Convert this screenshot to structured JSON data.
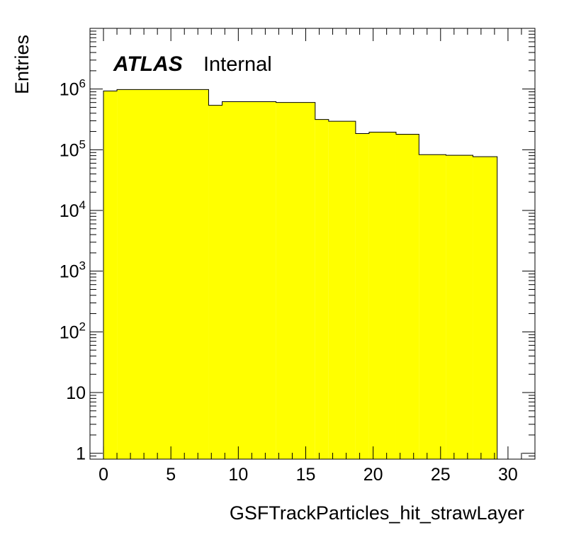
{
  "chart_data": {
    "type": "histogram",
    "title": "",
    "xlabel": "GSFTrackParticles_hit_strawLayer",
    "ylabel": "Entries",
    "xlim": [
      -1,
      32
    ],
    "ylim": [
      0.8,
      10000000
    ],
    "log_y": true,
    "fill_color": "#ffff00",
    "line_color": "#000000",
    "x_ticks": [
      0,
      5,
      10,
      15,
      20,
      25,
      30
    ],
    "y_ticks": [
      {
        "value": 1,
        "base": "1",
        "exp": ""
      },
      {
        "value": 10,
        "base": "10",
        "exp": ""
      },
      {
        "value": 100,
        "base": "10",
        "exp": "2"
      },
      {
        "value": 1000,
        "base": "10",
        "exp": "3"
      },
      {
        "value": 10000,
        "base": "10",
        "exp": "4"
      },
      {
        "value": 100000,
        "base": "10",
        "exp": "5"
      },
      {
        "value": 1000000,
        "base": "10",
        "exp": "6"
      }
    ],
    "bins": [
      {
        "low": 0,
        "high": 1,
        "value": 930000
      },
      {
        "low": 1,
        "high": 7.8,
        "value": 980000
      },
      {
        "low": 7.8,
        "high": 8.8,
        "value": 540000
      },
      {
        "low": 8.8,
        "high": 12.8,
        "value": 620000
      },
      {
        "low": 12.8,
        "high": 15.7,
        "value": 600000
      },
      {
        "low": 15.7,
        "high": 16.7,
        "value": 315000
      },
      {
        "low": 16.7,
        "high": 18.7,
        "value": 295000
      },
      {
        "low": 18.7,
        "high": 19.7,
        "value": 185000
      },
      {
        "low": 19.7,
        "high": 21.7,
        "value": 195000
      },
      {
        "low": 21.7,
        "high": 23.4,
        "value": 180000
      },
      {
        "low": 23.4,
        "high": 25.4,
        "value": 83000
      },
      {
        "low": 25.4,
        "high": 27.4,
        "value": 81000
      },
      {
        "low": 27.4,
        "high": 29.2,
        "value": 77000
      }
    ]
  },
  "label": {
    "experiment": "ATLAS",
    "status": "Internal"
  }
}
